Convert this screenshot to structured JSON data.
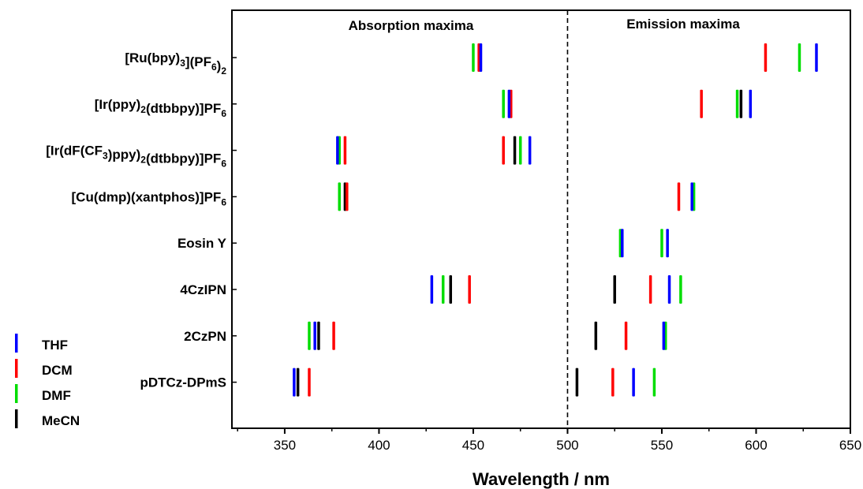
{
  "chart_data": {
    "type": "scatter",
    "xlabel": "Wavelength / nm",
    "xlim": [
      322,
      650
    ],
    "xticks": [
      350,
      400,
      450,
      500,
      550,
      600,
      650
    ],
    "divider_x": 500,
    "divider_style": "dashed",
    "regions": [
      {
        "label": "Absorption maxima"
      },
      {
        "label": "Emission maxima"
      }
    ],
    "categories": [
      {
        "text": "[Ru(bpy)",
        "sub1": "3",
        "mid": "](PF",
        "sub2": "6",
        "end": ")",
        "sub3": "2"
      },
      {
        "text": "[Ir(ppy)",
        "sub1": "2",
        "mid": "(dtbbpy)]PF",
        "sub2": "6",
        "end": "",
        "sub3": ""
      },
      {
        "text": "[Ir(dF(CF",
        "sub1": "3",
        "mid": ")ppy)",
        "sub2": "2",
        "end": "(dtbbpy)]PF",
        "sub3": "6"
      },
      {
        "text": "[Cu(dmp)(xantphos)]PF",
        "sub1": "6",
        "mid": "",
        "sub2": "",
        "end": "",
        "sub3": ""
      },
      {
        "text": "Eosin Y",
        "sub1": "",
        "mid": "",
        "sub2": "",
        "end": "",
        "sub3": ""
      },
      {
        "text": "4CzIPN",
        "sub1": "",
        "mid": "",
        "sub2": "",
        "end": "",
        "sub3": ""
      },
      {
        "text": "2CzPN",
        "sub1": "",
        "mid": "",
        "sub2": "",
        "end": "",
        "sub3": ""
      },
      {
        "text": "pDTCz-DPmS",
        "sub1": "",
        "mid": "",
        "sub2": "",
        "end": "",
        "sub3": ""
      }
    ],
    "legend_position": "left",
    "series": [
      {
        "name": "THF",
        "color": "#0000ff",
        "absorption": [
          454,
          469,
          378,
          null,
          529,
          428,
          366,
          355
        ],
        "emission": [
          632,
          597,
          480,
          566,
          553,
          554,
          551,
          535
        ]
      },
      {
        "name": "DCM",
        "color": "#ff0000",
        "absorption": [
          453,
          470,
          382,
          383,
          null,
          448,
          376,
          363
        ],
        "emission": [
          605,
          571,
          466,
          559,
          null,
          544,
          531,
          524
        ]
      },
      {
        "name": "DMF",
        "color": "#00dd00",
        "absorption": [
          450,
          466,
          379,
          379,
          528,
          434,
          363,
          null
        ],
        "emission": [
          623,
          590,
          475,
          567,
          550,
          560,
          552,
          546
        ]
      },
      {
        "name": "MeCN",
        "color": "#000000",
        "absorption": [
          null,
          null,
          472,
          382,
          null,
          438,
          368,
          357
        ],
        "emission": [
          null,
          592,
          null,
          null,
          null,
          525,
          515,
          505
        ]
      }
    ]
  }
}
